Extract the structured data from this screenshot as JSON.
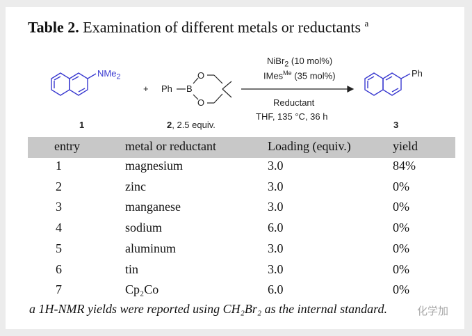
{
  "title": {
    "label": "Table 2.",
    "text": "Examination of different metals or reductants",
    "sup": "a"
  },
  "scheme": {
    "reactant1": {
      "group": "NMe",
      "sub": "2",
      "number": "1"
    },
    "plus": "+",
    "reactant2": {
      "label": "Ph",
      "boron": "B",
      "oxygen": "O",
      "number": "2",
      "equiv": ", 2.5 equiv."
    },
    "conditions_above": [
      {
        "text": "NiBr",
        "sub": "2",
        "rest": " (10 mol%)"
      },
      {
        "text": "IMes",
        "sup": "Me",
        "rest": " (35 mol%)"
      }
    ],
    "conditions_below": [
      "Reductant",
      "THF, 135 °C, 36 h"
    ],
    "product": {
      "group": "Ph",
      "number": "3"
    },
    "colors": {
      "reactant": "#3a3ad0",
      "product": "#3a3ad0"
    }
  },
  "table": {
    "headers": [
      "entry",
      "metal or reductant",
      "Loading (equiv.)",
      "yield"
    ],
    "rows": [
      [
        "1",
        "magnesium",
        "3.0",
        "84%"
      ],
      [
        "2",
        "zinc",
        "3.0",
        "0%"
      ],
      [
        "3",
        "manganese",
        "3.0",
        "0%"
      ],
      [
        "4",
        "sodium",
        "6.0",
        "0%"
      ],
      [
        "5",
        "aluminum",
        "3.0",
        "0%"
      ],
      [
        "6",
        "tin",
        "3.0",
        "0%"
      ],
      [
        "7",
        "Cp₂Co",
        "6.0",
        "0%"
      ]
    ]
  },
  "footnote": "a 1H-NMR yields were reported using CH₂Br₂ as the internal standard.",
  "watermark": "化学加"
}
